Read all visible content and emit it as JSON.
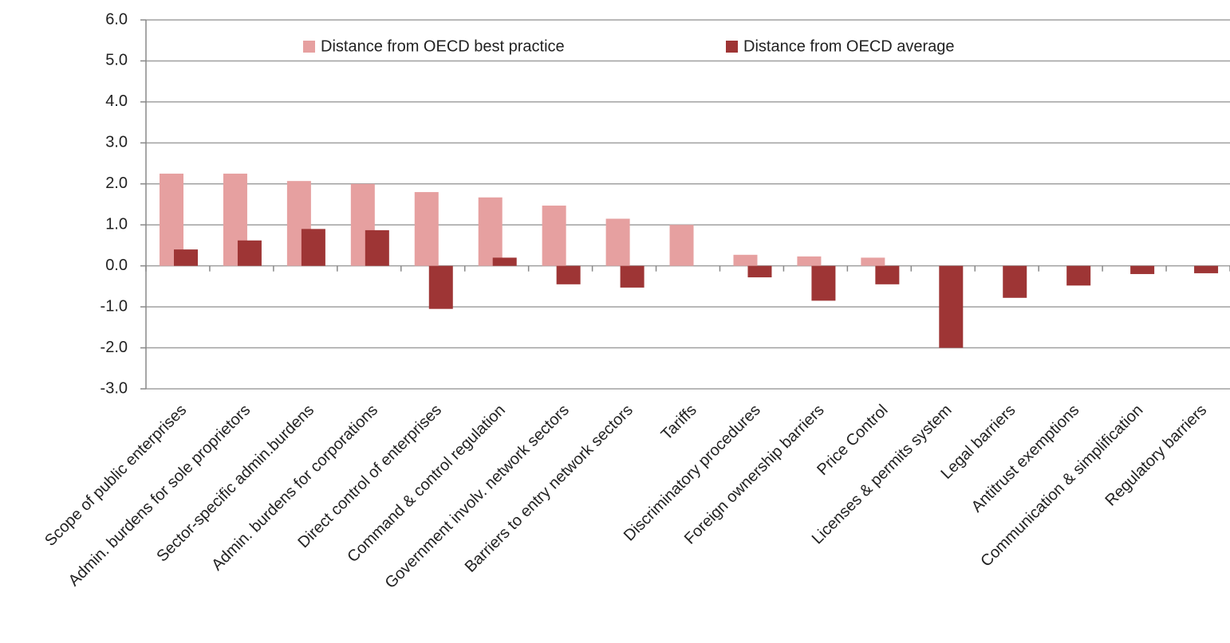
{
  "chart_data": {
    "type": "bar",
    "categories": [
      "Scope of public enterprises",
      "Admin. burdens for sole proprietors",
      "Sector-specific admin.burdens",
      "Admin. burdens for corporations",
      "Direct control of enterprises",
      "Command & control regulation",
      "Government involv. network sectors",
      "Barriers to entry network sectors",
      "Tariffs",
      "Discriminatory procedures",
      "Foreign ownership barriers",
      "Price Control",
      "Licenses & permits system",
      "Legal barriers",
      "Antitrust exemptions",
      "Communication & simplification",
      "Regulatory barriers"
    ],
    "series": [
      {
        "name": "Distance from OECD best practice",
        "color": "#e6a0a0",
        "values": [
          2.25,
          2.25,
          2.07,
          2.0,
          1.8,
          1.67,
          1.47,
          1.15,
          1.0,
          0.27,
          0.23,
          0.2,
          0,
          0,
          0,
          0,
          0
        ]
      },
      {
        "name": "Distance from OECD average",
        "color": "#9e3535",
        "values": [
          0.4,
          0.62,
          0.9,
          0.87,
          -1.05,
          0.2,
          -0.45,
          -0.53,
          0,
          -0.28,
          -0.85,
          -0.45,
          -2.0,
          -0.78,
          -0.48,
          -0.2,
          -0.18
        ]
      }
    ],
    "ylim": [
      -3,
      6
    ],
    "yticks": [
      {
        "value": -3,
        "label": "-3.0"
      },
      {
        "value": -2,
        "label": "-2.0"
      },
      {
        "value": -1,
        "label": "-1.0"
      },
      {
        "value": 0,
        "label": "0.0"
      },
      {
        "value": 1,
        "label": "1.0"
      },
      {
        "value": 2,
        "label": "2.0"
      },
      {
        "value": 3,
        "label": "3.0"
      },
      {
        "value": 4,
        "label": "4.0"
      },
      {
        "value": 5,
        "label": "5.0"
      },
      {
        "value": 6,
        "label": "6.0"
      }
    ],
    "grid": true,
    "legend": "top"
  }
}
